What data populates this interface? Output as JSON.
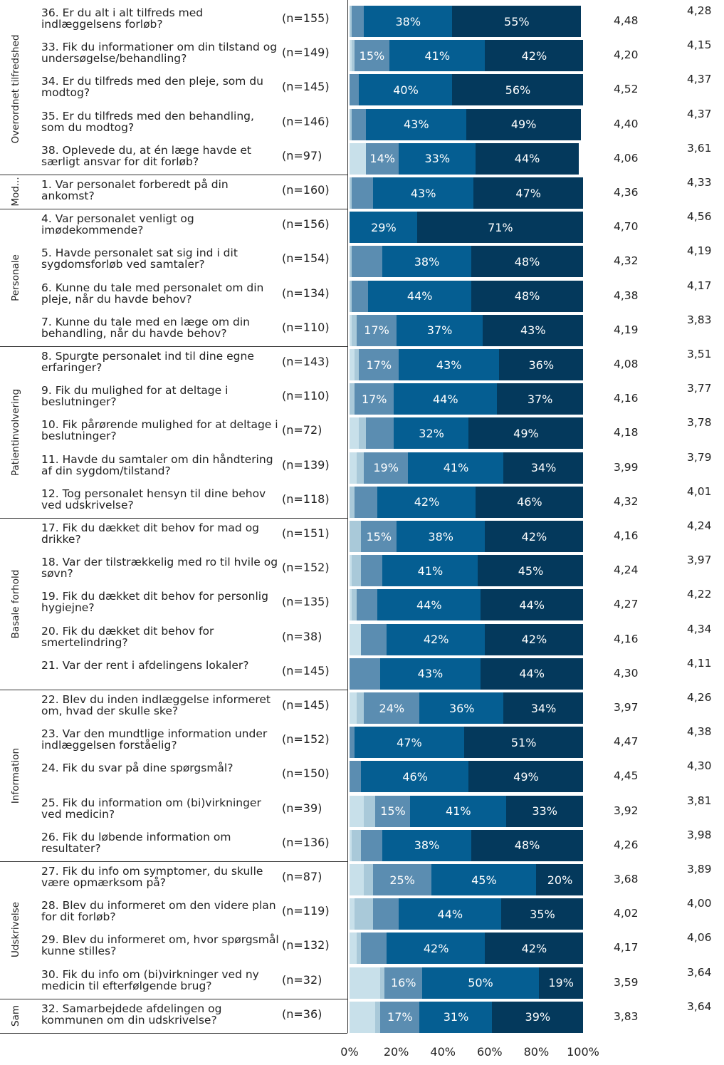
{
  "chart_data": {
    "type": "bar",
    "orientation": "horizontal",
    "stacked": true,
    "xlim": [
      0,
      100
    ],
    "x_ticks": [
      "0%",
      "20%",
      "40%",
      "60%",
      "80%",
      "100%"
    ],
    "colors": [
      "#c8e0ea",
      "#a9c9d9",
      "#5b8db1",
      "#055e92",
      "#04395c"
    ],
    "groups": [
      {
        "label": "Overordnet tilfredshed",
        "start": 0,
        "count": 5
      },
      {
        "label": "Mod...",
        "start": 5,
        "count": 1
      },
      {
        "label": "Personale",
        "start": 6,
        "count": 4
      },
      {
        "label": "Patientinvolvering",
        "start": 10,
        "count": 5
      },
      {
        "label": "Basale forhold",
        "start": 15,
        "count": 5
      },
      {
        "label": "Information",
        "start": 20,
        "count": 5
      },
      {
        "label": "Udskrivelse",
        "start": 25,
        "count": 4
      },
      {
        "label": "Sam",
        "start": 29,
        "count": 1
      }
    ],
    "rows": [
      {
        "q": "36. Er du alt i alt tilfreds med indlæggelsens forløb?",
        "n": "(n=155)",
        "segments": [
          0,
          1,
          5,
          38,
          55
        ],
        "labels": [
          "",
          "",
          "",
          "38%",
          "55%"
        ],
        "mean": "4,48",
        "ref": "4,28"
      },
      {
        "q": "33. Fik du informationer om din tilstand og undersøgelse/behandling?",
        "n": "(n=149)",
        "segments": [
          1,
          1,
          15,
          41,
          42
        ],
        "labels": [
          "",
          "",
          "15%",
          "41%",
          "42%"
        ],
        "mean": "4,20",
        "ref": "4,15"
      },
      {
        "q": "34. Er du tilfreds med den pleje, som du modtog?",
        "n": "(n=145)",
        "segments": [
          0,
          0,
          4,
          40,
          56
        ],
        "labels": [
          "",
          "",
          "",
          "40%",
          "56%"
        ],
        "mean": "4,52",
        "ref": "4,37"
      },
      {
        "q": "35. Er du tilfreds med den behandling, som du modtog?",
        "n": "(n=146)",
        "segments": [
          0,
          1,
          6,
          43,
          49
        ],
        "labels": [
          "",
          "",
          "",
          "43%",
          "49%"
        ],
        "mean": "4,40",
        "ref": "4,37"
      },
      {
        "q": "38. Oplevede du, at én læge havde et særligt ansvar for dit forløb?",
        "n": "(n=97)",
        "segments": [
          7,
          0,
          14,
          33,
          44
        ],
        "labels": [
          "",
          "",
          "14%",
          "33%",
          "44%"
        ],
        "mean": "4,06",
        "ref": "3,61"
      },
      {
        "q": "1. Var personalet forberedt på din ankomst?",
        "n": "(n=160)",
        "segments": [
          0,
          1,
          9,
          43,
          47
        ],
        "labels": [
          "",
          "",
          "",
          "43%",
          "47%"
        ],
        "mean": "4,36",
        "ref": "4,33"
      },
      {
        "q": "4. Var personalet venligt og imødekommende?",
        "n": "(n=156)",
        "segments": [
          0,
          0,
          0,
          29,
          71
        ],
        "labels": [
          "",
          "",
          "",
          "29%",
          "71%"
        ],
        "mean": "4,70",
        "ref": "4,56"
      },
      {
        "q": "5. Havde personalet sat sig ind i dit sygdomsforløb ved samtaler?",
        "n": "(n=154)",
        "segments": [
          0,
          1,
          13,
          38,
          48
        ],
        "labels": [
          "",
          "",
          "",
          "38%",
          "48%"
        ],
        "mean": "4,32",
        "ref": "4,19"
      },
      {
        "q": "6. Kunne du tale med personalet om din pleje, når du havde behov?",
        "n": "(n=134)",
        "segments": [
          0,
          1,
          7,
          44,
          48
        ],
        "labels": [
          "",
          "",
          "",
          "44%",
          "48%"
        ],
        "mean": "4,38",
        "ref": "4,17"
      },
      {
        "q": "7. Kunne du tale med en læge om din behandling, når du havde behov?",
        "n": "(n=110)",
        "segments": [
          1,
          2,
          17,
          37,
          43
        ],
        "labels": [
          "",
          "",
          "17%",
          "37%",
          "43%"
        ],
        "mean": "4,19",
        "ref": "3,83"
      },
      {
        "q": "8. Spurgte personalet ind til dine egne erfaringer?",
        "n": "(n=143)",
        "segments": [
          2,
          2,
          17,
          43,
          36
        ],
        "labels": [
          "",
          "",
          "17%",
          "43%",
          "36%"
        ],
        "mean": "4,08",
        "ref": "3,51"
      },
      {
        "q": "9. Fik du mulighed for at deltage i beslutninger?",
        "n": "(n=110)",
        "segments": [
          0,
          2,
          17,
          44,
          37
        ],
        "labels": [
          "",
          "",
          "17%",
          "44%",
          "37%"
        ],
        "mean": "4,16",
        "ref": "3,77"
      },
      {
        "q": "10. Fik pårørende mulighed for at deltage i beslutninger?",
        "n": "(n=72)",
        "segments": [
          4,
          3,
          12,
          32,
          49
        ],
        "labels": [
          "",
          "",
          "",
          "32%",
          "49%"
        ],
        "mean": "4,18",
        "ref": "3,78"
      },
      {
        "q": "11. Havde du samtaler om din håndtering af din sygdom/tilstand?",
        "n": "(n=139)",
        "segments": [
          3,
          3,
          19,
          41,
          34
        ],
        "labels": [
          "",
          "",
          "19%",
          "41%",
          "34%"
        ],
        "mean": "3,99",
        "ref": "3,79"
      },
      {
        "q": "12. Tog personalet hensyn til dine behov ved udskrivelse?",
        "n": "(n=118)",
        "segments": [
          0,
          2,
          10,
          42,
          46
        ],
        "labels": [
          "",
          "",
          "",
          "42%",
          "46%"
        ],
        "mean": "4,32",
        "ref": "4,01"
      },
      {
        "q": "17. Fik du dækket dit behov for mad og drikke?",
        "n": "(n=151)",
        "segments": [
          0,
          5,
          15,
          38,
          42
        ],
        "labels": [
          "",
          "",
          "15%",
          "38%",
          "42%"
        ],
        "mean": "4,16",
        "ref": "4,24"
      },
      {
        "q": "18. Var der tilstrækkelig med ro til hvile og søvn?",
        "n": "(n=152)",
        "segments": [
          1,
          4,
          9,
          41,
          45
        ],
        "labels": [
          "",
          "",
          "",
          "41%",
          "45%"
        ],
        "mean": "4,24",
        "ref": "3,97"
      },
      {
        "q": "19. Fik du dækket dit behov for personlig hygiejne?",
        "n": "(n=135)",
        "segments": [
          1,
          2,
          9,
          44,
          44
        ],
        "labels": [
          "",
          "",
          "",
          "44%",
          "44%"
        ],
        "mean": "4,27",
        "ref": "4,22"
      },
      {
        "q": "20. Fik du dækket dit behov for smertelindring?",
        "n": "(n=38)",
        "segments": [
          5,
          0,
          11,
          42,
          42
        ],
        "labels": [
          "",
          "",
          "",
          "42%",
          "42%"
        ],
        "mean": "4,16",
        "ref": "4,34"
      },
      {
        "q": "21. Var der rent i afdelingens lokaler?",
        "n": "(n=145)",
        "segments": [
          0,
          0,
          13,
          43,
          44
        ],
        "labels": [
          "",
          "",
          "",
          "43%",
          "44%"
        ],
        "mean": "4,30",
        "ref": "4,11"
      },
      {
        "q": "22. Blev du inden indlæggelse informeret om, hvad der skulle ske?",
        "n": "(n=145)",
        "segments": [
          3,
          3,
          24,
          36,
          34
        ],
        "labels": [
          "",
          "",
          "24%",
          "36%",
          "34%"
        ],
        "mean": "3,97",
        "ref": "4,26"
      },
      {
        "q": "23. Var den mundtlige information under indlæggelsen forståelig?",
        "n": "(n=152)",
        "segments": [
          0,
          0,
          2,
          47,
          51
        ],
        "labels": [
          "",
          "",
          "",
          "47%",
          "51%"
        ],
        "mean": "4,47",
        "ref": "4,38"
      },
      {
        "q": "24. Fik du svar på dine spørgsmål?",
        "n": "(n=150)",
        "segments": [
          0,
          0,
          5,
          46,
          49
        ],
        "labels": [
          "",
          "",
          "",
          "46%",
          "49%"
        ],
        "mean": "4,45",
        "ref": "4,30"
      },
      {
        "q": "25. Fik du information om (bi)virkninger ved medicin?",
        "n": "(n=39)",
        "segments": [
          6,
          5,
          15,
          41,
          33
        ],
        "labels": [
          "",
          "",
          "15%",
          "41%",
          "33%"
        ],
        "mean": "3,92",
        "ref": "3,81"
      },
      {
        "q": "26. Fik du løbende information om resultater?",
        "n": "(n=136)",
        "segments": [
          1,
          4,
          9,
          38,
          48
        ],
        "labels": [
          "",
          "",
          "",
          "38%",
          "48%"
        ],
        "mean": "4,26",
        "ref": "3,98"
      },
      {
        "q": "27. Fik du info om symptomer, du skulle være opmærksom på?",
        "n": "(n=87)",
        "segments": [
          6,
          4,
          25,
          45,
          20
        ],
        "labels": [
          "",
          "",
          "25%",
          "45%",
          "20%"
        ],
        "mean": "3,68",
        "ref": "3,89"
      },
      {
        "q": "28. Blev du informeret om den videre plan for dit forløb?",
        "n": "(n=119)",
        "segments": [
          2,
          8,
          11,
          44,
          35
        ],
        "labels": [
          "",
          "",
          "",
          "44%",
          "35%"
        ],
        "mean": "4,02",
        "ref": "4,00"
      },
      {
        "q": "29. Blev du informeret om, hvor spørgsmål kunne stilles?",
        "n": "(n=132)",
        "segments": [
          3,
          2,
          11,
          42,
          42
        ],
        "labels": [
          "",
          "",
          "",
          "42%",
          "42%"
        ],
        "mean": "4,17",
        "ref": "4,06"
      },
      {
        "q": "30. Fik du info om (bi)virkninger ved ny medicin til efterfølgende brug?",
        "n": "(n=32)",
        "segments": [
          13,
          2,
          16,
          50,
          19
        ],
        "labels": [
          "",
          "",
          "16%",
          "50%",
          "19%"
        ],
        "mean": "3,59",
        "ref": "3,64"
      },
      {
        "q": "32. Samarbejdede afdelingen og kommunen om din udskrivelse?",
        "n": "(n=36)",
        "segments": [
          11,
          2,
          17,
          31,
          39
        ],
        "labels": [
          "",
          "",
          "17%",
          "31%",
          "39%"
        ],
        "mean": "3,83",
        "ref": "3,64"
      }
    ]
  }
}
